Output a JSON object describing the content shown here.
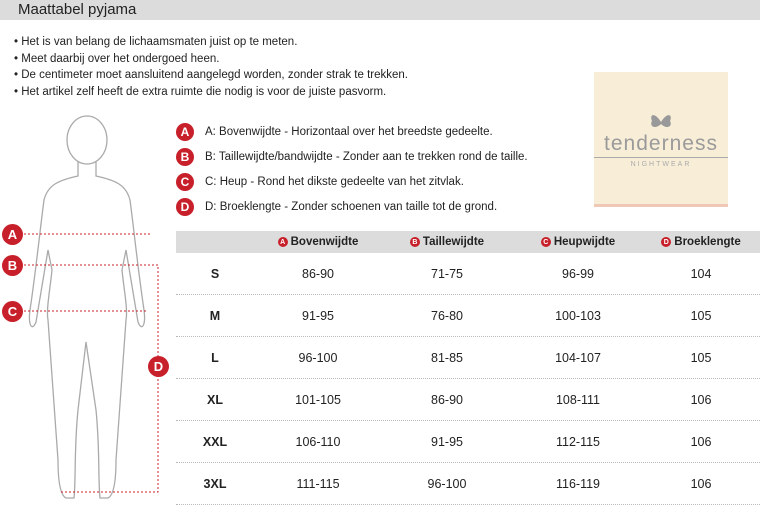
{
  "header": {
    "title": "Maattabel pyjama"
  },
  "instructions": [
    "Het is van belang de lichaamsmaten juist op te meten.",
    "Meet daarbij over het ondergoed heen.",
    "De centimeter moet aansluitend aangelegd worden, zonder strak te trekken.",
    "Het artikel zelf heeft de extra ruimte die nodig is voor de juiste pasvorm."
  ],
  "legend": [
    {
      "letter": "A",
      "text": "A: Bovenwijdte - Horizontaal over het breedste gedeelte."
    },
    {
      "letter": "B",
      "text": "B: Taillewijdte/bandwijdte - Zonder aan te trekken rond de taille."
    },
    {
      "letter": "C",
      "text": "C: Heup - Rond het dikste gedeelte van het zitvlak."
    },
    {
      "letter": "D",
      "text": "D: Broeklengte - Zonder schoenen van taille tot de grond."
    }
  ],
  "logo": {
    "name": "tenderness",
    "sub": "NIGHTWEAR"
  },
  "accent": "#c8202a",
  "table": {
    "columns": [
      {
        "letter": "A",
        "label": "Bovenwijdte"
      },
      {
        "letter": "B",
        "label": "Taillewijdte"
      },
      {
        "letter": "C",
        "label": "Heupwijdte"
      },
      {
        "letter": "D",
        "label": "Broeklengte"
      }
    ],
    "rows": [
      {
        "size": "S",
        "values": [
          "86-90",
          "71-75",
          "96-99",
          "104"
        ]
      },
      {
        "size": "M",
        "values": [
          "91-95",
          "76-80",
          "100-103",
          "105"
        ]
      },
      {
        "size": "L",
        "values": [
          "96-100",
          "81-85",
          "104-107",
          "105"
        ]
      },
      {
        "size": "XL",
        "values": [
          "101-105",
          "86-90",
          "108-111",
          "106"
        ]
      },
      {
        "size": "XXL",
        "values": [
          "106-110",
          "91-95",
          "112-115",
          "106"
        ]
      },
      {
        "size": "3XL",
        "values": [
          "111-115",
          "96-100",
          "116-119",
          "106"
        ]
      }
    ]
  }
}
